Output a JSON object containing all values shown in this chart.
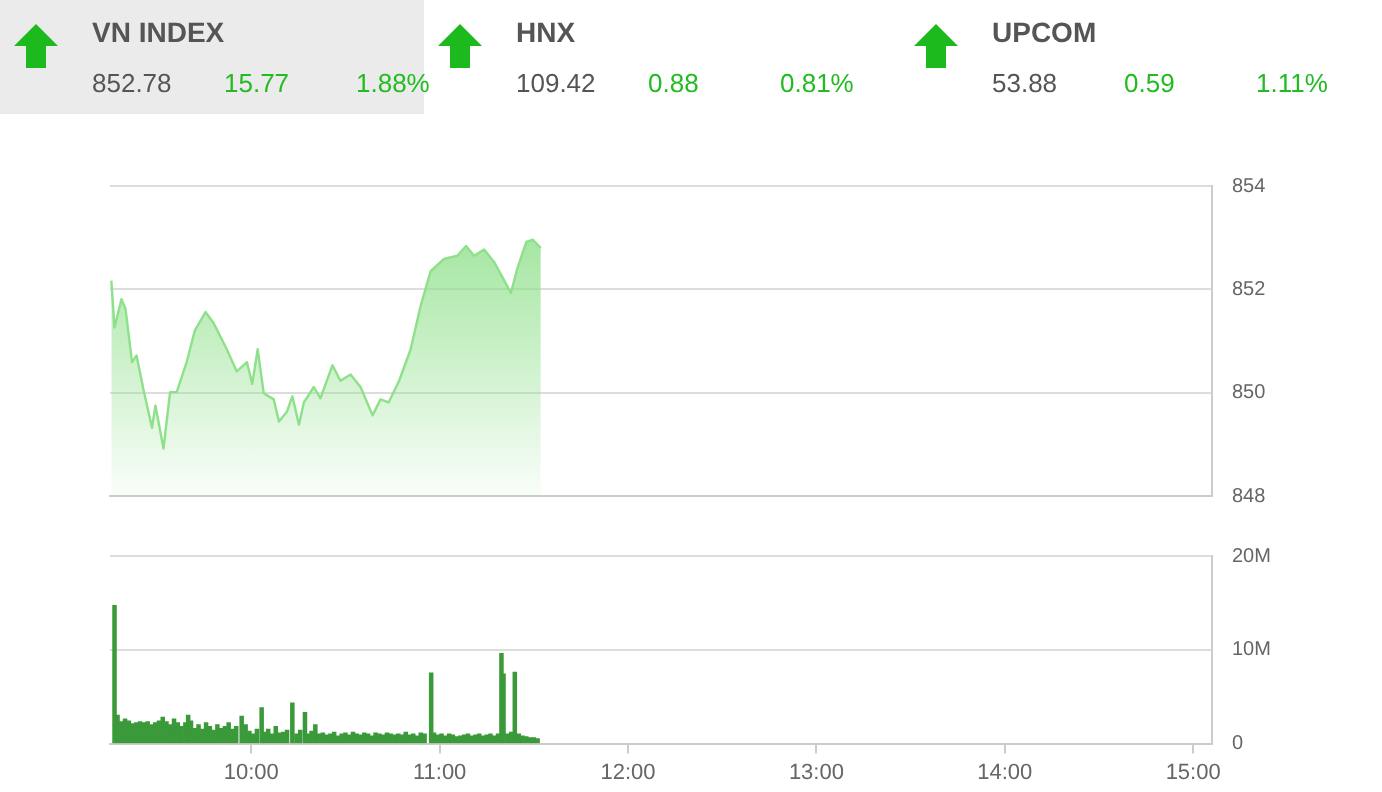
{
  "chart_data": [
    {
      "type": "other",
      "annotations": [
        "VN INDEX",
        "852.78",
        "15.77",
        "1.88%",
        "HNX",
        "109.42",
        "0.88",
        "0.81%",
        "UPCOM",
        "53.88",
        "0.59",
        "1.11%"
      ]
    },
    {
      "type": "area",
      "tick_labels": "y",
      "grid": "y",
      "xlim": [
        9.25,
        15.1
      ],
      "ylim": [
        848,
        854
      ],
      "yticks": [
        848,
        850,
        852,
        854
      ],
      "series": [
        {
          "color": "#8ee08a",
          "x": [
            9.257,
            9.274,
            9.311,
            9.332,
            9.367,
            9.391,
            9.428,
            9.473,
            9.491,
            9.534,
            9.569,
            9.604,
            9.657,
            9.7,
            9.757,
            9.8,
            9.87,
            9.923,
            9.977,
            10.005,
            10.034,
            10.066,
            10.119,
            10.147,
            10.189,
            10.218,
            10.253,
            10.279,
            10.332,
            10.367,
            10.431,
            10.473,
            10.527,
            10.58,
            10.644,
            10.686,
            10.729,
            10.785,
            10.846,
            10.899,
            10.952,
            11.023,
            11.094,
            11.14,
            11.183,
            11.236,
            11.289,
            11.343,
            11.378,
            11.413,
            11.46,
            11.495,
            11.537
          ],
          "values": [
            852.17,
            851.26,
            851.81,
            851.63,
            850.59,
            850.72,
            850.05,
            849.32,
            849.75,
            848.92,
            850.01,
            850.01,
            850.59,
            851.2,
            851.56,
            851.35,
            850.84,
            850.41,
            850.59,
            850.17,
            850.84,
            849.99,
            849.87,
            849.44,
            849.63,
            849.93,
            849.38,
            849.81,
            850.11,
            849.89,
            850.53,
            850.23,
            850.35,
            850.11,
            849.56,
            849.87,
            849.81,
            850.23,
            850.84,
            851.68,
            852.35,
            852.59,
            852.65,
            852.84,
            852.65,
            852.77,
            852.53,
            852.17,
            851.93,
            852.41,
            852.92,
            852.96,
            852.8
          ]
        }
      ]
    },
    {
      "type": "bar",
      "grid": "y",
      "xlim": [
        9.25,
        15.1
      ],
      "xticks": [
        {
          "value": 10,
          "label": "10:00"
        },
        {
          "value": 11,
          "label": "11:00"
        },
        {
          "value": 12,
          "label": "12:00"
        },
        {
          "value": 13,
          "label": "13:00"
        },
        {
          "value": 14,
          "label": "14:00"
        },
        {
          "value": 15,
          "label": "15:00"
        }
      ],
      "ylim": [
        0,
        20
      ],
      "yticks": [
        0,
        {
          "value": 10,
          "label": "10M"
        },
        {
          "value": 20,
          "label": "20M"
        }
      ],
      "series": [
        {
          "color": "#3a9a3a",
          "x": [
            9.274,
            9.29,
            9.31,
            9.33,
            9.35,
            9.37,
            9.39,
            9.41,
            9.43,
            9.45,
            9.47,
            9.49,
            9.51,
            9.53,
            9.55,
            9.57,
            9.59,
            9.61,
            9.63,
            9.65,
            9.665,
            9.68,
            9.7,
            9.72,
            9.74,
            9.76,
            9.78,
            9.8,
            9.82,
            9.84,
            9.86,
            9.88,
            9.9,
            9.92,
            9.949,
            9.97,
            9.99,
            10.01,
            10.03,
            10.055,
            10.07,
            10.09,
            10.11,
            10.13,
            10.15,
            10.17,
            10.19,
            10.218,
            10.24,
            10.26,
            10.285,
            10.3,
            10.32,
            10.34,
            10.36,
            10.38,
            10.4,
            10.42,
            10.44,
            10.46,
            10.48,
            10.5,
            10.52,
            10.54,
            10.56,
            10.58,
            10.6,
            10.62,
            10.64,
            10.66,
            10.68,
            10.7,
            10.72,
            10.74,
            10.76,
            10.78,
            10.8,
            10.82,
            10.84,
            10.86,
            10.88,
            10.9,
            10.92,
            10.955,
            10.97,
            10.99,
            11.01,
            11.03,
            11.05,
            11.07,
            11.09,
            11.11,
            11.13,
            11.15,
            11.17,
            11.19,
            11.21,
            11.23,
            11.25,
            11.27,
            11.29,
            11.31,
            11.328,
            11.339,
            11.36,
            11.38,
            11.399,
            11.42,
            11.44,
            11.46,
            11.48,
            11.5,
            11.52
          ],
          "values": [
            14.7,
            3.0,
            2.3,
            2.6,
            2.4,
            2.1,
            2.2,
            2.3,
            2.2,
            2.3,
            2.0,
            2.2,
            2.4,
            2.8,
            2.3,
            2.0,
            2.6,
            2.2,
            1.8,
            2.2,
            3.0,
            2.4,
            1.6,
            2.0,
            1.5,
            2.2,
            1.8,
            1.4,
            2.0,
            1.6,
            1.8,
            2.2,
            1.5,
            1.8,
            2.9,
            2.0,
            1.3,
            1.0,
            1.5,
            3.8,
            1.2,
            1.5,
            1.0,
            1.8,
            1.1,
            1.2,
            1.4,
            4.3,
            1.0,
            1.4,
            3.3,
            1.0,
            1.3,
            2.0,
            1.0,
            1.1,
            0.9,
            1.0,
            1.2,
            0.8,
            1.0,
            1.1,
            0.9,
            1.2,
            1.0,
            0.9,
            1.1,
            1.0,
            0.8,
            1.1,
            1.0,
            0.9,
            1.1,
            1.0,
            0.9,
            1.0,
            0.9,
            1.2,
            0.9,
            1.0,
            0.8,
            1.1,
            1.0,
            7.5,
            1.1,
            0.9,
            1.0,
            0.8,
            1.0,
            0.9,
            0.7,
            0.8,
            0.9,
            1.0,
            0.8,
            0.9,
            1.0,
            0.8,
            0.9,
            1.0,
            0.8,
            1.0,
            9.6,
            7.4,
            1.0,
            1.2,
            7.6,
            1.0,
            0.8,
            0.7,
            0.6,
            0.6,
            0.5
          ]
        }
      ]
    }
  ]
}
